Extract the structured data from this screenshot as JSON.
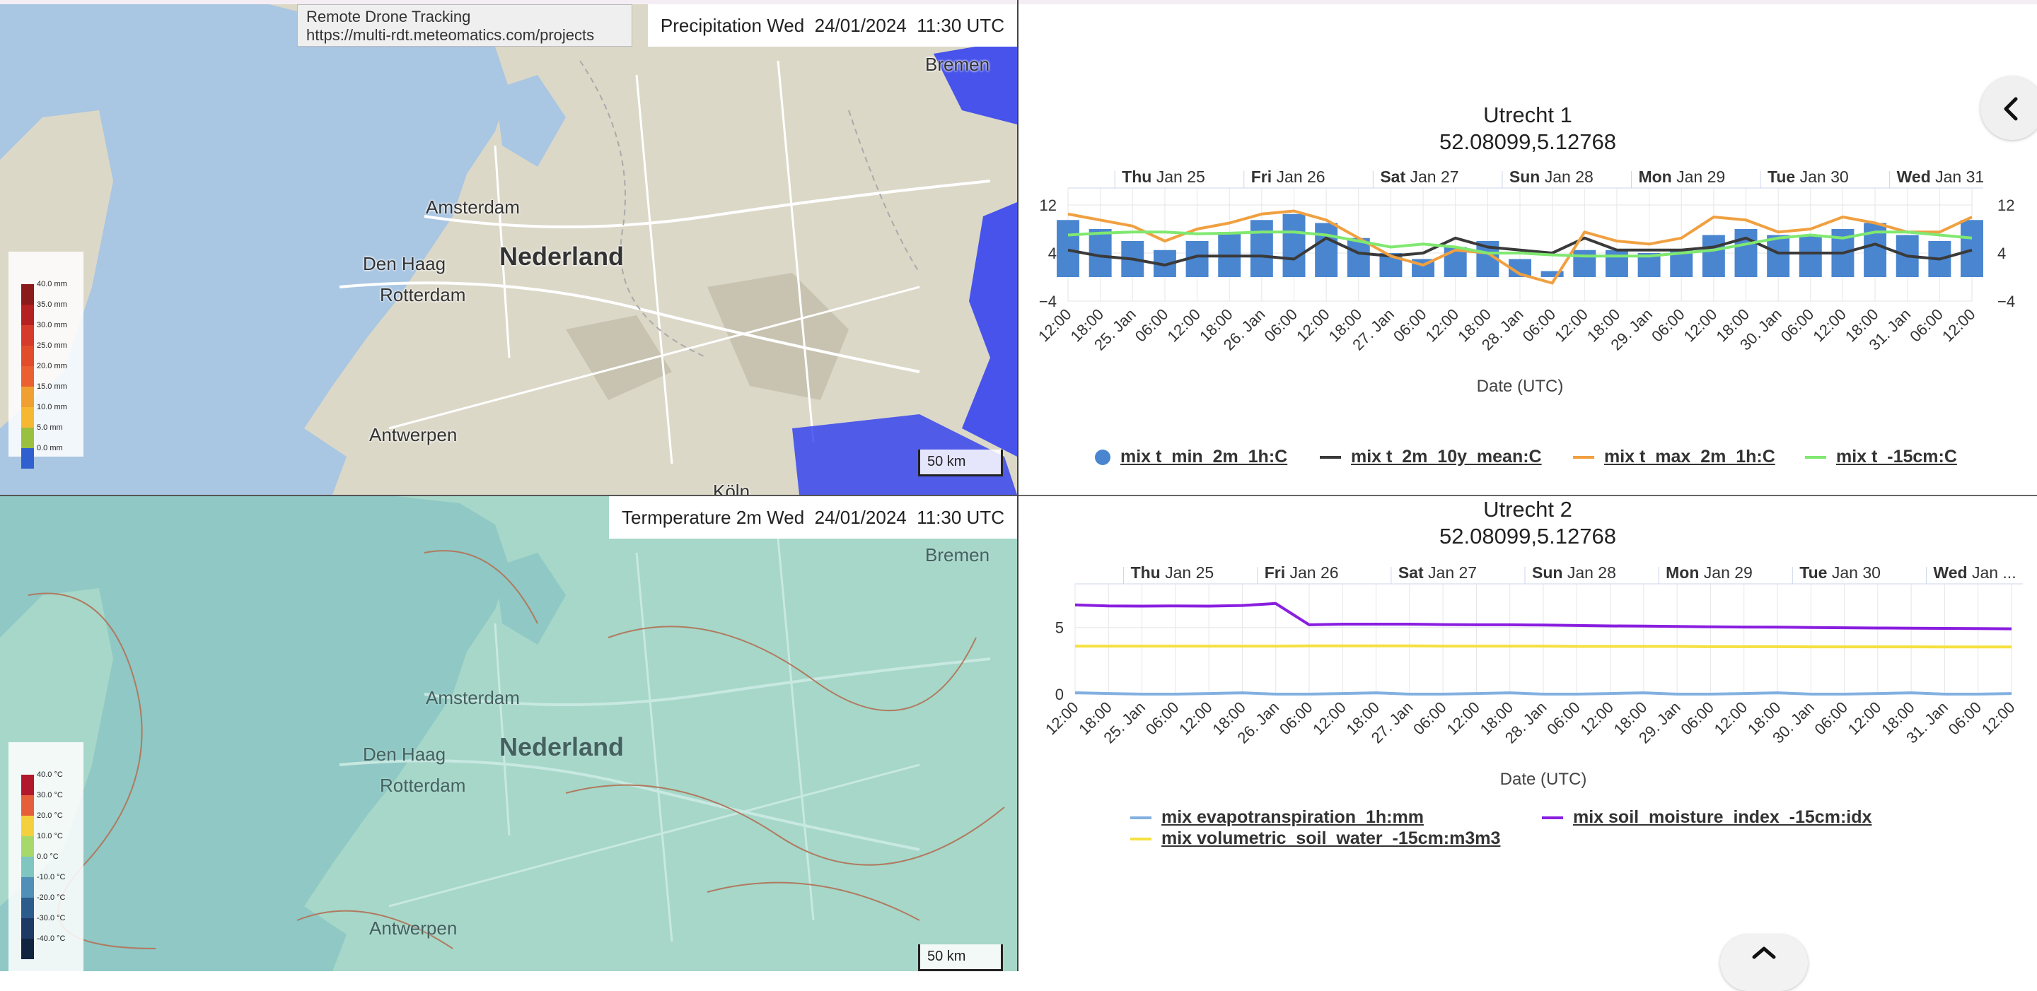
{
  "tooltip": {
    "line1": "Remote Drone Tracking",
    "line2": "https://multi-rdt.meteomatics.com/projects"
  },
  "map_top": {
    "header": "Precipitation Wed  24/01/2024  11:30 UTC",
    "scale": "50 km",
    "legend_labels": [
      "40.0 mm",
      "35.0 mm",
      "30.0 mm",
      "25.0 mm",
      "20.0 mm",
      "15.0 mm",
      "10.0 mm",
      "5.0 mm",
      "0.0 mm"
    ],
    "legend_colors": [
      "#8b1a1a",
      "#b52020",
      "#d63a2a",
      "#e24c2a",
      "#ea6030",
      "#f0a030",
      "#f5b830",
      "#9ac040",
      "#3060d0"
    ]
  },
  "map_bottom": {
    "header": "Termperature 2m Wed  24/01/2024  11:30 UTC",
    "scale": "50 km",
    "legend_labels": [
      "40.0 °C",
      "30.0 °C",
      "20.0 °C",
      "10.0 °C",
      "0.0 °C",
      "-10.0 °C",
      "-20.0 °C",
      "-30.0 °C",
      "-40.0 °C"
    ],
    "legend_colors": [
      "#b2182b",
      "#e5603a",
      "#f4d03f",
      "#a6d96a",
      "#7fc6c0",
      "#4f8fb8",
      "#2c5c8c",
      "#1c3a64",
      "#102440"
    ]
  },
  "cities": {
    "bremen": "Bremen",
    "amsterdam": "Amsterdam",
    "nederland": "Nederland",
    "den_haag": "Den Haag",
    "rotterdam": "Rotterdam",
    "antwerpen": "Antwerpen",
    "koln": "Köln"
  },
  "chart1": {
    "title": "Utrecht 1",
    "subtitle": "52.08099,5.12768"
  },
  "chart2": {
    "title": "Utrecht 2",
    "subtitle": "52.08099,5.12768"
  },
  "chart_data": [
    {
      "type": "line",
      "title": "Utrecht 1",
      "subtitle": "52.08099,5.12768",
      "xlabel": "Date (UTC)",
      "ylabel": "",
      "ylim": [
        -4,
        12
      ],
      "yticks": [
        "12",
        "4",
        "−4"
      ],
      "top_axis": [
        "Thu Jan 25",
        "Fri Jan 26",
        "Sat Jan 27",
        "Sun Jan 28",
        "Mon Jan 29",
        "Tue Jan 30",
        "Wed Jan 31"
      ],
      "x": [
        "12:00",
        "18:00",
        "25. Jan",
        "06:00",
        "12:00",
        "18:00",
        "26. Jan",
        "06:00",
        "12:00",
        "18:00",
        "27. Jan",
        "06:00",
        "12:00",
        "18:00",
        "28. Jan",
        "06:00",
        "12:00",
        "18:00",
        "29. Jan",
        "06:00",
        "12:00",
        "18:00",
        "30. Jan",
        "06:00",
        "12:00",
        "18:00",
        "31. Jan",
        "06:00",
        "12:00"
      ],
      "series": [
        {
          "name": "mix t_min_2m_1h:C",
          "kind": "column",
          "color": "#4a86d0",
          "values": [
            9.5,
            8,
            6,
            4.5,
            6,
            7.5,
            9.5,
            10.5,
            9,
            6.5,
            4,
            3,
            5,
            6,
            3,
            1,
            4.5,
            4.5,
            4,
            4.5,
            7,
            8,
            7,
            7,
            8,
            9,
            7,
            6,
            9.5
          ]
        },
        {
          "name": "mix t_2m_10y_mean:C",
          "kind": "line",
          "color": "#3a3a3a",
          "values": [
            4.5,
            3.5,
            3,
            2,
            3.5,
            3.5,
            3.5,
            3,
            6.5,
            4,
            3.5,
            4,
            6.5,
            5,
            4.5,
            4,
            6.5,
            4.5,
            4.5,
            4.5,
            5,
            6.5,
            4,
            4,
            4,
            5.5,
            3.5,
            3,
            4.5
          ]
        },
        {
          "name": "mix t_max_2m_1h:C",
          "kind": "line",
          "color": "#f0a040",
          "values": [
            10.5,
            9.5,
            8.5,
            6,
            8,
            9,
            10.5,
            11,
            9.5,
            6.5,
            3.5,
            2,
            4.5,
            4,
            0.5,
            -1,
            7.5,
            6,
            5.5,
            6.5,
            10,
            9.5,
            7.5,
            8,
            10,
            9,
            7.5,
            7.5,
            10
          ]
        },
        {
          "name": "mix t_-15cm:C",
          "kind": "line",
          "color": "#80e870",
          "values": [
            7,
            7.3,
            7.5,
            7.5,
            7.2,
            7.3,
            7.5,
            7.5,
            7,
            6,
            5,
            5.5,
            5,
            4,
            4,
            3.7,
            3.5,
            3.5,
            3.5,
            4,
            4.5,
            5.5,
            6.5,
            7,
            6.5,
            7.5,
            7.5,
            7,
            6.5
          ]
        }
      ],
      "legend_placement": "bottom"
    },
    {
      "type": "line",
      "title": "Utrecht 2",
      "subtitle": "52.08099,5.12768",
      "xlabel": "Date (UTC)",
      "ylabel": "",
      "ylim": [
        0,
        7
      ],
      "yticks": [
        "5",
        "0"
      ],
      "top_axis": [
        "Thu Jan 25",
        "Fri Jan 26",
        "Sat Jan 27",
        "Sun Jan 28",
        "Mon Jan 29",
        "Tue Jan 30",
        "Wed Jan ..."
      ],
      "x": [
        "12:00",
        "18:00",
        "25. Jan",
        "06:00",
        "12:00",
        "18:00",
        "26. Jan",
        "06:00",
        "12:00",
        "18:00",
        "27. Jan",
        "06:00",
        "12:00",
        "18:00",
        "28. Jan",
        "06:00",
        "12:00",
        "18:00",
        "29. Jan",
        "06:00",
        "12:00",
        "18:00",
        "30. Jan",
        "06:00",
        "12:00",
        "18:00",
        "31. Jan",
        "06:00",
        "12:00"
      ],
      "series": [
        {
          "name": "mix evapotranspiration_1h:mm",
          "color": "#82b0e0",
          "values": [
            0.1,
            0.05,
            0,
            0,
            0.05,
            0.1,
            0,
            0,
            0.05,
            0.1,
            0,
            0,
            0.05,
            0.1,
            0,
            0,
            0.05,
            0.1,
            0,
            0,
            0.05,
            0.1,
            0,
            0,
            0.05,
            0.1,
            0,
            0,
            0.05
          ]
        },
        {
          "name": "mix soil_moisture_index_-15cm:idx",
          "color": "#8a1ee0",
          "values": [
            6.7,
            6.62,
            6.6,
            6.62,
            6.6,
            6.65,
            6.8,
            5.2,
            5.25,
            5.25,
            5.25,
            5.22,
            5.2,
            5.2,
            5.18,
            5.15,
            5.12,
            5.1,
            5.08,
            5.05,
            5.03,
            5.02,
            5.0,
            4.98,
            4.96,
            4.95,
            4.93,
            4.92,
            4.9
          ]
        },
        {
          "name": "mix volumetric_soil_water_-15cm:m3m3",
          "color": "#f5e040",
          "values": [
            3.6,
            3.6,
            3.6,
            3.6,
            3.6,
            3.6,
            3.6,
            3.62,
            3.62,
            3.62,
            3.62,
            3.6,
            3.6,
            3.6,
            3.6,
            3.58,
            3.58,
            3.58,
            3.58,
            3.56,
            3.56,
            3.56,
            3.55,
            3.55,
            3.55,
            3.55,
            3.54,
            3.54,
            3.54
          ]
        }
      ],
      "legend_placement": "bottom"
    }
  ]
}
